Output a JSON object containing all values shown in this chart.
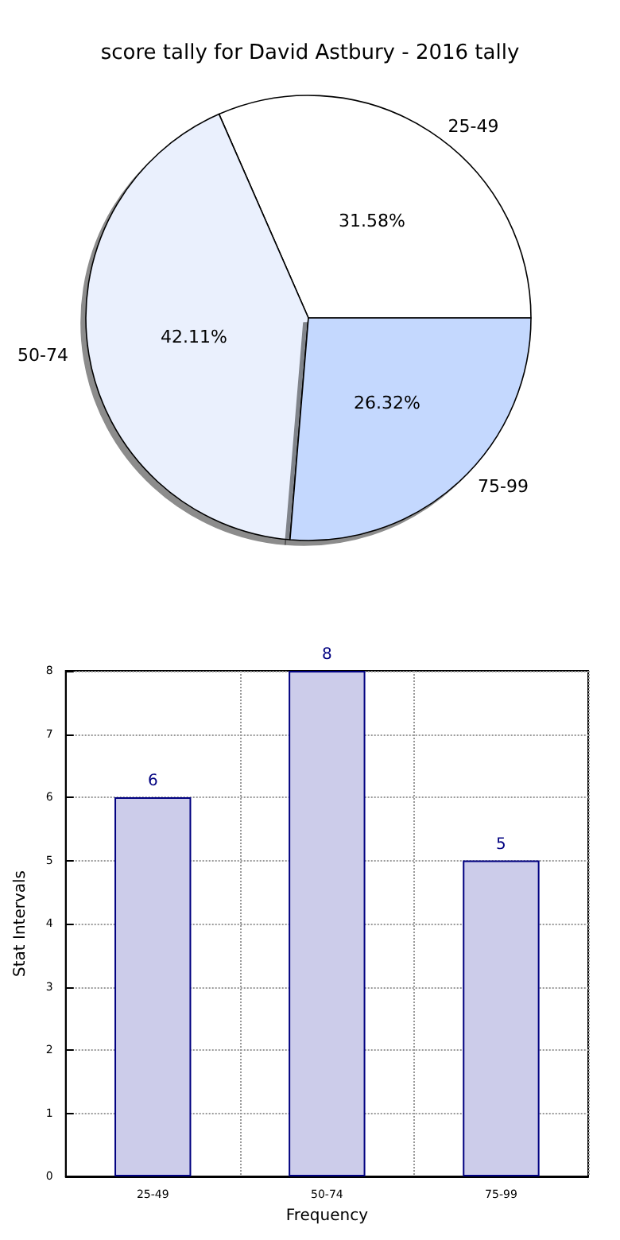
{
  "chart_data": [
    {
      "type": "pie",
      "title": "score tally for David Astbury - 2016 tally",
      "categories": [
        "25-49",
        "50-74",
        "75-99"
      ],
      "values": [
        31.58,
        42.11,
        26.32
      ],
      "value_labels": [
        "31.58%",
        "42.11%",
        "26.32%"
      ],
      "colors": [
        "#ffffff",
        "#eaf0fd",
        "#c4d8fe"
      ]
    },
    {
      "type": "bar",
      "categories": [
        "25-49",
        "50-74",
        "75-99"
      ],
      "values": [
        6,
        8,
        5
      ],
      "color": "#ccccea",
      "xlabel": "Frequency",
      "ylabel": "Stat Intervals",
      "ylim": [
        0,
        8
      ],
      "yticks": [
        0,
        1,
        2,
        3,
        4,
        5,
        6,
        7,
        8
      ],
      "grid": true,
      "data_labels": true
    }
  ]
}
